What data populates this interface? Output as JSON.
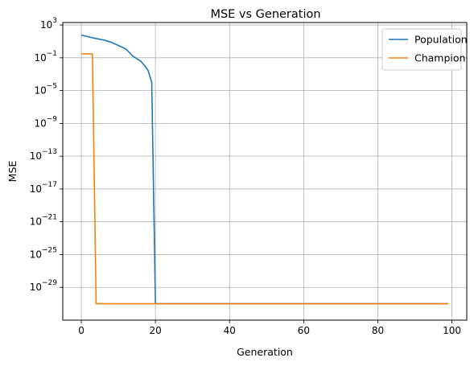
{
  "chart_data": {
    "type": "line",
    "title": "MSE vs Generation",
    "xlabel": "Generation",
    "ylabel": "MSE",
    "xlim": [
      -5,
      104
    ],
    "ylim_log10": [
      -33,
      3.3
    ],
    "yscale": "log",
    "grid": true,
    "legend_placement": "top-right",
    "x_ticks": [
      0,
      20,
      40,
      60,
      80,
      100
    ],
    "y_tick_exponents": [
      3,
      -1,
      -5,
      -9,
      -13,
      -17,
      -21,
      -25,
      -29
    ],
    "series": [
      {
        "name": "Population",
        "color": "#1f77b4",
        "points": [
          [
            0,
            60
          ],
          [
            2,
            35
          ],
          [
            4,
            22
          ],
          [
            6,
            15
          ],
          [
            8,
            8
          ],
          [
            10,
            3.2
          ],
          [
            12,
            1.2
          ],
          [
            14,
            0.15
          ],
          [
            16,
            0.04
          ],
          [
            17,
            0.012
          ],
          [
            18,
            0.003
          ],
          [
            19,
            0.0001
          ],
          [
            20,
            1e-31
          ],
          [
            99,
            1e-31
          ]
        ]
      },
      {
        "name": "Champion",
        "color": "#ff7f0e",
        "points": [
          [
            0,
            0.3
          ],
          [
            3,
            0.3
          ],
          [
            4,
            1e-31
          ],
          [
            99,
            1e-31
          ]
        ]
      }
    ]
  }
}
